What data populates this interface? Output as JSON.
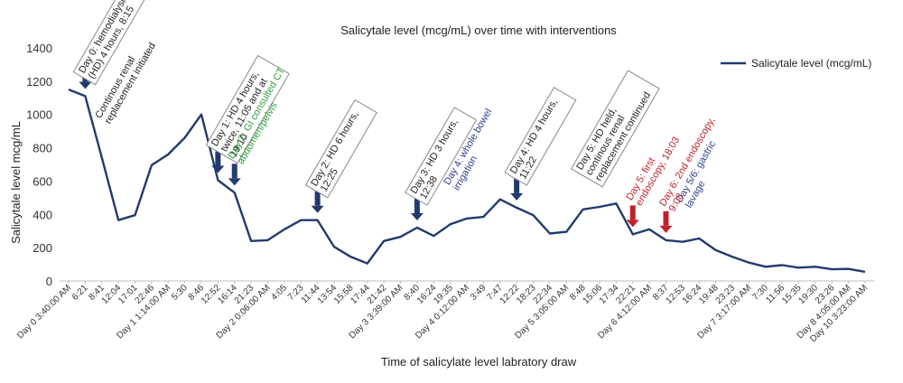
{
  "chart_data": {
    "type": "line",
    "title": "Salicytale level (mcg/mL) over time with interventions",
    "xlabel": "Time of salicylate level labratory draw",
    "ylabel": "Salicytale level mcg/mL",
    "ylim": [
      0,
      1400
    ],
    "yticks": [
      0,
      200,
      400,
      600,
      800,
      1000,
      1200,
      1400
    ],
    "grid": false,
    "legend_position": "top-right",
    "series": [
      {
        "name": "Salicytale level (mcg/mL)",
        "color": "#233a6e",
        "values": [
          1150,
          1110,
          740,
          365,
          395,
          695,
          760,
          860,
          1000,
          605,
          530,
          240,
          245,
          310,
          365,
          365,
          205,
          145,
          105,
          240,
          265,
          320,
          270,
          340,
          375,
          385,
          490,
          440,
          395,
          285,
          295,
          430,
          445,
          465,
          280,
          310,
          245,
          235,
          255,
          185,
          145,
          110,
          85,
          95,
          80,
          85,
          70,
          72,
          55
        ]
      }
    ],
    "x_tick_labels": [
      "Day 0 3:40:00 AM",
      "6:21",
      "8:41",
      "12:04",
      "17:01",
      "22:46",
      "Day 1 1:14:00 AM",
      "5:30",
      "8:46",
      "12:52",
      "16:14",
      "21:23",
      "Day 2 0:06:00 AM",
      "4:05",
      "7:23",
      "11:44",
      "13:54",
      "15:58",
      "17:44",
      "21:42",
      "Day 3 3:39:00 AM",
      "8:40",
      "16:24",
      "19:35",
      "Day 4 0:12:00 AM",
      "3:49",
      "7:47",
      "12:22",
      "18:23",
      "22:34",
      "Day 5 3:05:00 AM",
      "8:48",
      "15:06",
      "17:34",
      "22:21",
      "Day 6 4:12:00 AM",
      "8:37",
      "12:53",
      "16:24",
      "19:48",
      "23:23",
      "Day 7 3:17:00 AM",
      "7:30",
      "11:56",
      "15:35",
      "19:30",
      "23:26",
      "Day 8 4:05:00 AM",
      "Day 10 3:23:00 AM"
    ],
    "annotations": [
      {
        "text": "Day 0: hemodialysis (HD) 4 hours, 8:15",
        "boxed": true,
        "color": "#222222",
        "arrow": "navy",
        "at_index": 1
      },
      {
        "text": "Continous renal replacement initiated",
        "boxed": false,
        "color": "#222222",
        "arrow": "none",
        "at_index": 2
      },
      {
        "text": "Day 1: HD 4 hours, twice, 11:05 and at 19:10",
        "boxed": true,
        "color": "#222222",
        "arrow": "navy",
        "at_index": 9
      },
      {
        "text": "Day 2: GI consulted CT abdomen/pelvis",
        "boxed": false,
        "color": "#2e9e3e",
        "arrow": "navy",
        "at_index": 10
      },
      {
        "text": "Day 2: HD 6 hours, 12:25",
        "boxed": true,
        "color": "#222222",
        "arrow": "navy",
        "at_index": 15
      },
      {
        "text": "Day 3: HD 3 hours, 12:38",
        "boxed": true,
        "color": "#222222",
        "arrow": "navy",
        "at_index": 21
      },
      {
        "text": "Day 4: whole bowel irrigation",
        "boxed": false,
        "color": "#2e3f8f",
        "arrow": "none",
        "at_index": 23
      },
      {
        "text": "Day 4: HD 4 hours, 11:22",
        "boxed": true,
        "color": "#222222",
        "arrow": "navy",
        "at_index": 27
      },
      {
        "text": "Day 5: HD held, continous renal replacement continued",
        "boxed": true,
        "color": "#222222",
        "arrow": "none",
        "at_index": 31
      },
      {
        "text": "Day 5: first endoscopy, 18:03",
        "boxed": false,
        "color": "#c0202a",
        "arrow": "red",
        "at_index": 34
      },
      {
        "text": "Day 5/6: gastric lavage",
        "boxed": false,
        "color": "#2e3f8f",
        "arrow": "none",
        "at_index": 37
      },
      {
        "text": "Day 6: 2nd endoscopy, 9:08",
        "boxed": false,
        "color": "#c0202a",
        "arrow": "red",
        "at_index": 36
      }
    ]
  }
}
